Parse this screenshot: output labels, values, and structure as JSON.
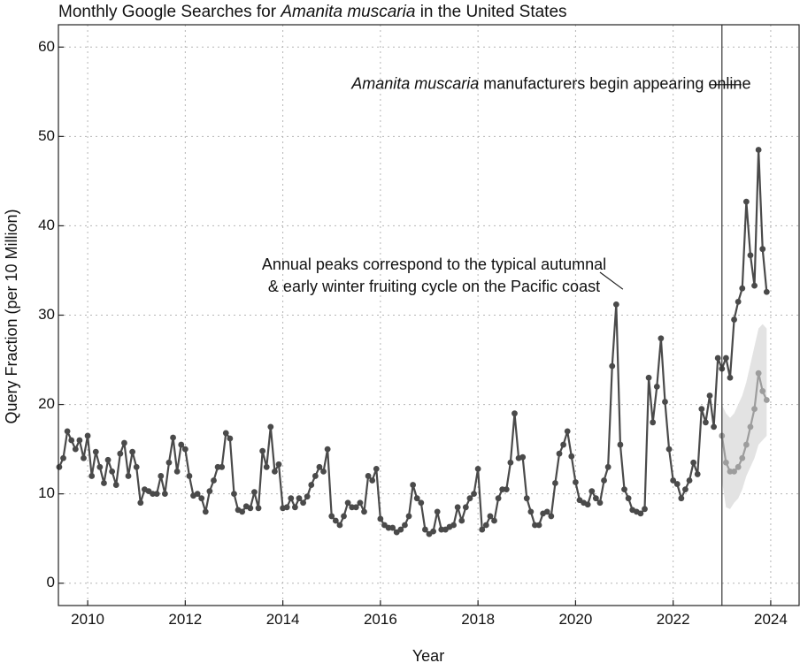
{
  "chart_data": {
    "type": "line",
    "title_parts": [
      {
        "text": "Monthly Google Searches for ",
        "italic": false
      },
      {
        "text": "Amanita muscaria",
        "italic": true
      },
      {
        "text": " in the United States",
        "italic": false
      }
    ],
    "xlabel": "Year",
    "ylabel": "Query Fraction (per 10 Million)",
    "xlim": [
      2009.4,
      2024.6
    ],
    "ylim": [
      -2.5,
      62.5
    ],
    "xticks": [
      2010,
      2012,
      2014,
      2016,
      2018,
      2020,
      2022,
      2024
    ],
    "yticks": [
      0,
      10,
      20,
      30,
      40,
      50,
      60
    ],
    "grid": true,
    "start": "2009-06",
    "series": [
      {
        "color": "#4a4a4a",
        "values": [
          13,
          14,
          17,
          16,
          15,
          16,
          14,
          16.5,
          12,
          14.7,
          13,
          11.2,
          13.8,
          12.5,
          11,
          14.5,
          15.7,
          12,
          14.7,
          13,
          9,
          10.5,
          10.3,
          10,
          10,
          12,
          10,
          13.5,
          16.3,
          12.5,
          15.5,
          15,
          12,
          9.8,
          10,
          9.5,
          8,
          10.3,
          11.5,
          13,
          13,
          16.8,
          16.2,
          10,
          8.2,
          8,
          8.6,
          8.4,
          10.2,
          8.4,
          14.8,
          13,
          17.5,
          12.5,
          13.3,
          8.4,
          8.5,
          9.5,
          8.5,
          9.5,
          9,
          9.7,
          11,
          12,
          13,
          12.5,
          15,
          7.5,
          7,
          6.5,
          7.5,
          9,
          8.5,
          8.5,
          9,
          8,
          12,
          11.5,
          12.8,
          7.2,
          6.5,
          6.2,
          6.2,
          5.7,
          6,
          6.5,
          7.5,
          11,
          9.5,
          9,
          6,
          5.5,
          5.8,
          8,
          6,
          6,
          6.3,
          6.5,
          8.5,
          7,
          8.5,
          9.5,
          10,
          12.8,
          6,
          6.5,
          7.5,
          7,
          9.5,
          10.5,
          10.5,
          13.5,
          19,
          14,
          14.1,
          9.5,
          8,
          6.5,
          6.5,
          7.8,
          8,
          7.5,
          11.2,
          14.5,
          15.5,
          17,
          14.2,
          11.3,
          9.3,
          9,
          8.8,
          10.3,
          9.5,
          9,
          11.5,
          13,
          24.3,
          31.2,
          15.5,
          10.5,
          9.5,
          8.2,
          8,
          7.8,
          8.3,
          23,
          18,
          22,
          27.4,
          20.3,
          15,
          11.5,
          11.1,
          9.5,
          10.5,
          11.5,
          13.5,
          12.2,
          19.5,
          18,
          21,
          17.5,
          25.2,
          24,
          25.2,
          23,
          29.5,
          31.5,
          33,
          42.7,
          36.7,
          33.3,
          48.5,
          37.4,
          32.6
        ]
      },
      {
        "color": "#9d9d9d",
        "start": "2023-01",
        "values": [
          16.5,
          13.5,
          12.5,
          12.5,
          13,
          14,
          15.5,
          17.5,
          19.5,
          23.5,
          21.5,
          20.5
        ],
        "band_upper": [
          20,
          19,
          18.5,
          19,
          20,
          21,
          22.5,
          24.5,
          26.5,
          28.5,
          29,
          28.5
        ],
        "band_lower": [
          11.5,
          8.5,
          8.3,
          9,
          9.5,
          10.5,
          12,
          13,
          14,
          15.5,
          16,
          16.5
        ],
        "band_color": "#e3e3e3"
      }
    ],
    "vline_x": 2023.0,
    "annotations": [
      {
        "lines": [
          [
            {
              "text": "Amanita muscaria",
              "italic": true
            },
            {
              "text": " manufacturers begin appearing online",
              "italic": false
            }
          ]
        ],
        "x": 2019.5,
        "y": 55.8,
        "pointer_from": [
          2022.75,
          55.8
        ],
        "pointer_to": [
          2023.4,
          55.8
        ]
      },
      {
        "lines": [
          [
            {
              "text": "Annual peaks correspond to the typical autumnal",
              "italic": false
            }
          ],
          [
            {
              "text": "& early winter fruiting cycle on the Pacific coast",
              "italic": false
            }
          ]
        ],
        "x": 2017.1,
        "y": 35.6,
        "pointer_from": [
          2020.5,
          34.8
        ],
        "pointer_to": [
          2020.97,
          32.9
        ]
      }
    ]
  }
}
